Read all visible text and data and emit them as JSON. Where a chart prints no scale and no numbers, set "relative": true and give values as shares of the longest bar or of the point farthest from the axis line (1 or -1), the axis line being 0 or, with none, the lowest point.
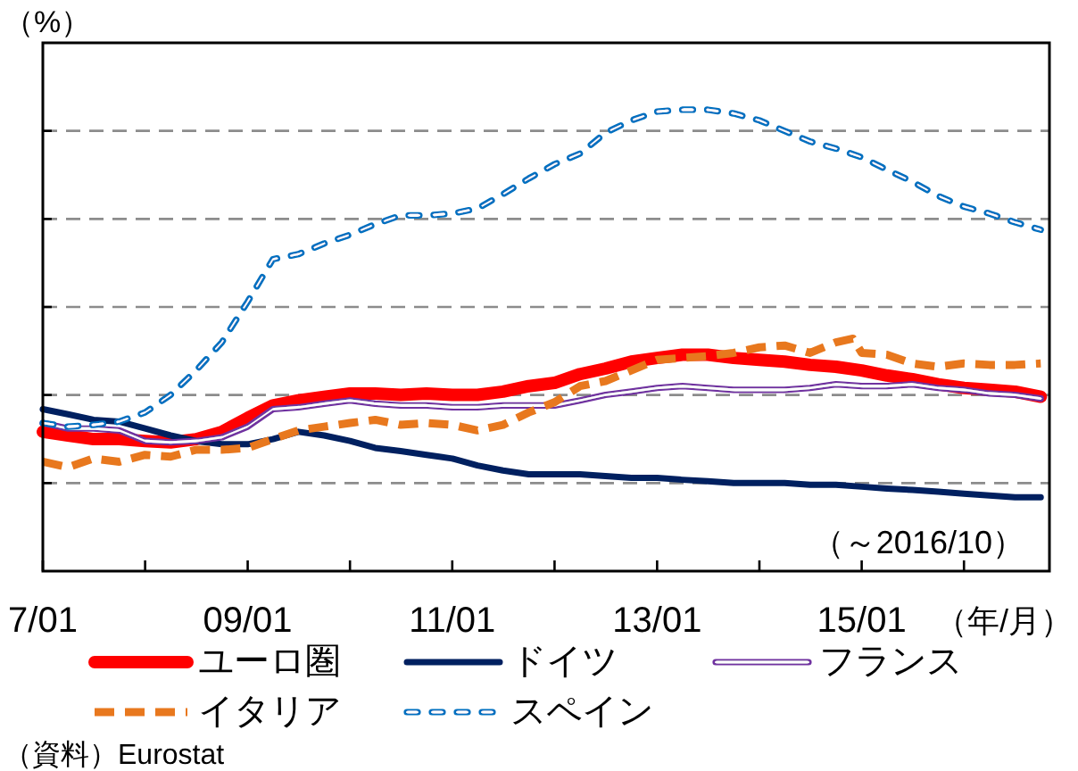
{
  "chart_data": {
    "type": "line",
    "relative": true,
    "ylabel": "（%）",
    "xlabel": "（年/月）",
    "x": [
      "2007-01",
      "2007-04",
      "2007-07",
      "2007-10",
      "2008-01",
      "2008-04",
      "2008-07",
      "2008-10",
      "2009-01",
      "2009-04",
      "2009-07",
      "2009-10",
      "2010-01",
      "2010-04",
      "2010-07",
      "2010-10",
      "2011-01",
      "2011-04",
      "2011-07",
      "2011-10",
      "2012-01",
      "2012-04",
      "2012-07",
      "2012-10",
      "2013-01",
      "2013-04",
      "2013-07",
      "2013-10",
      "2014-01",
      "2014-04",
      "2014-07",
      "2014-10",
      "2015-01",
      "2015-04",
      "2015-07",
      "2015-10",
      "2016-01",
      "2016-04",
      "2016-07",
      "2016-10"
    ],
    "xlim": [
      "2007-01",
      "2016-11"
    ],
    "xticks": [
      {
        "value": "2007-01",
        "label": "7/01"
      },
      {
        "value": "2008-01",
        "label": null
      },
      {
        "value": "2009-01",
        "label": "09/01"
      },
      {
        "value": "2010-01",
        "label": null
      },
      {
        "value": "2011-01",
        "label": "11/01"
      },
      {
        "value": "2012-01",
        "label": null
      },
      {
        "value": "2013-01",
        "label": "13/01"
      },
      {
        "value": "2014-01",
        "label": null
      },
      {
        "value": "2015-01",
        "label": "15/01"
      },
      {
        "value": "2016-01",
        "label": null
      }
    ],
    "grid": "y",
    "legend": "bottom",
    "series": [
      {
        "name": "ユーロ圏",
        "color": "#ff0000",
        "values": [
          0.302,
          0.294,
          0.286,
          0.286,
          0.282,
          0.279,
          0.286,
          0.302,
          0.332,
          0.359,
          0.37,
          0.378,
          0.385,
          0.385,
          0.382,
          0.385,
          0.382,
          0.382,
          0.389,
          0.401,
          0.408,
          0.427,
          0.439,
          0.454,
          0.462,
          0.469,
          0.469,
          0.462,
          0.458,
          0.454,
          0.447,
          0.443,
          0.435,
          0.424,
          0.416,
          0.405,
          0.397,
          0.393,
          0.389,
          0.378
        ]
      },
      {
        "name": "ドイツ",
        "color": "#002060",
        "values": [
          0.351,
          0.34,
          0.328,
          0.324,
          0.309,
          0.294,
          0.282,
          0.275,
          0.275,
          0.286,
          0.302,
          0.294,
          0.282,
          0.267,
          0.26,
          0.252,
          0.244,
          0.229,
          0.218,
          0.21,
          0.21,
          0.21,
          0.206,
          0.202,
          0.202,
          0.198,
          0.195,
          0.191,
          0.191,
          0.191,
          0.187,
          0.187,
          0.183,
          0.179,
          0.176,
          0.172,
          0.168,
          0.164,
          0.16,
          0.16
        ]
      },
      {
        "name": "フランス",
        "color": "#7030a0",
        "values": [
          0.321,
          0.309,
          0.309,
          0.305,
          0.282,
          0.279,
          0.282,
          0.29,
          0.313,
          0.351,
          0.355,
          0.363,
          0.37,
          0.363,
          0.359,
          0.359,
          0.355,
          0.355,
          0.359,
          0.359,
          0.359,
          0.37,
          0.382,
          0.389,
          0.397,
          0.401,
          0.397,
          0.393,
          0.393,
          0.393,
          0.397,
          0.405,
          0.401,
          0.401,
          0.405,
          0.397,
          0.393,
          0.385,
          0.382,
          0.374
        ]
      },
      {
        "name": "イタリア",
        "color": "#e8781e",
        "line_style": "dashed",
        "x": [
          "2007-01",
          "2007-04",
          "2007-07",
          "2007-10",
          "2008-01",
          "2008-04",
          "2008-07",
          "2008-10",
          "2009-01",
          "2009-04",
          "2009-07",
          "2009-10",
          "2010-01",
          "2010-04",
          "2010-07",
          "2010-10",
          "2011-01",
          "2011-04",
          "2011-07",
          "2011-10",
          "2012-01",
          "2012-04",
          "2012-07",
          "2012-10",
          "2013-01",
          "2013-04",
          "2013-07",
          "2013-10",
          "2014-01",
          "2014-04",
          "2014-07",
          "2014-10",
          "2014-12",
          "2015-01",
          "2015-04",
          "2015-07",
          "2015-10",
          "2016-01",
          "2016-04",
          "2016-07",
          "2016-10"
        ],
        "values": [
          0.237,
          0.225,
          0.244,
          0.237,
          0.252,
          0.248,
          0.263,
          0.263,
          0.267,
          0.286,
          0.305,
          0.313,
          0.321,
          0.328,
          0.317,
          0.321,
          0.317,
          0.305,
          0.317,
          0.344,
          0.366,
          0.401,
          0.412,
          0.435,
          0.458,
          0.462,
          0.466,
          0.473,
          0.485,
          0.489,
          0.473,
          0.496,
          0.504,
          0.473,
          0.469,
          0.45,
          0.443,
          0.45,
          0.447,
          0.447,
          0.45
        ]
      },
      {
        "name": "スペイン",
        "color": "#0070c0",
        "line_style": "dashed",
        "values": [
          0.321,
          0.313,
          0.317,
          0.324,
          0.344,
          0.382,
          0.435,
          0.496,
          0.584,
          0.676,
          0.687,
          0.71,
          0.729,
          0.752,
          0.771,
          0.771,
          0.775,
          0.786,
          0.817,
          0.851,
          0.882,
          0.905,
          0.95,
          0.977,
          0.996,
          1,
          1,
          0.992,
          0.977,
          0.954,
          0.931,
          0.916,
          0.897,
          0.87,
          0.844,
          0.813,
          0.79,
          0.775,
          0.756,
          0.74
        ]
      }
    ],
    "annotations": [
      "（～2016/10）",
      "（資料）Eurostat"
    ]
  }
}
